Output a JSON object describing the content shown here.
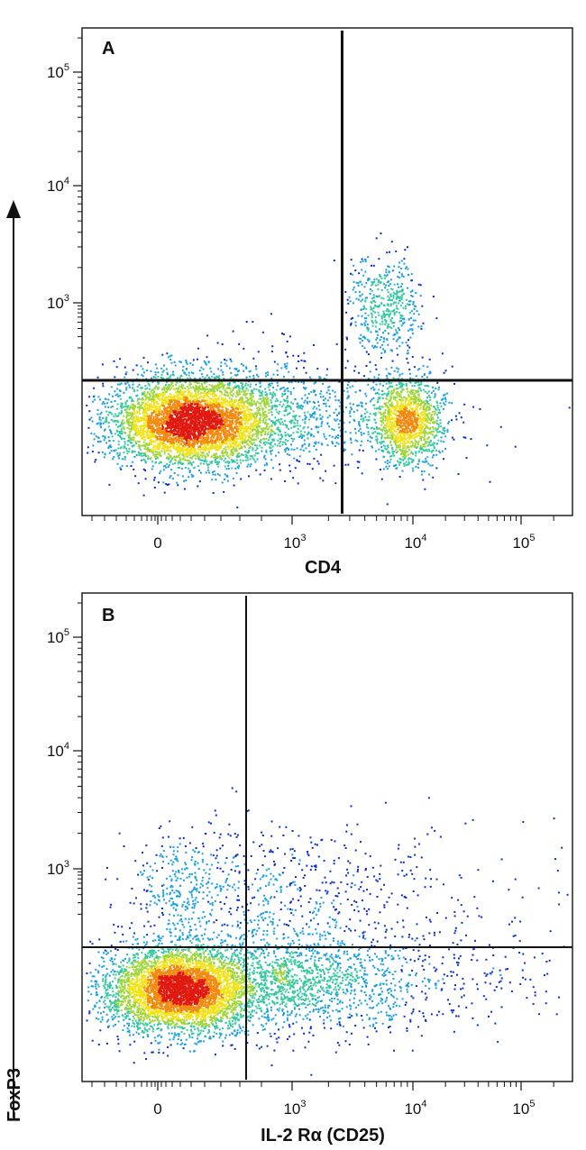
{
  "shared_y_axis": {
    "label": "FoxP3"
  },
  "chart_data": [
    {
      "type": "scatter",
      "panel_label": "A",
      "xlabel": "CD4",
      "ylabel": "FoxP3",
      "x_scale": "biexponential",
      "y_scale": "biexponential",
      "x_ticks": [
        {
          "base": "0",
          "exp": ""
        },
        {
          "base": "10",
          "exp": "3"
        },
        {
          "base": "10",
          "exp": "4"
        },
        {
          "base": "10",
          "exp": "5"
        }
      ],
      "y_ticks": [
        {
          "base": "10",
          "exp": "3"
        },
        {
          "base": "10",
          "exp": "4"
        },
        {
          "base": "10",
          "exp": "5"
        }
      ],
      "gate": {
        "x": 2600,
        "y": 280
      },
      "populations": [
        {
          "name": "CD4- FoxP3-",
          "center": [
            180,
            90
          ],
          "approx_fraction": 0.72
        },
        {
          "name": "CD4+ FoxP3-",
          "center": [
            9500,
            90
          ],
          "approx_fraction": 0.2
        },
        {
          "name": "CD4+ FoxP3+",
          "center": [
            6500,
            1000
          ],
          "approx_fraction": 0.08
        }
      ],
      "color_scale": [
        "#0b2fc8",
        "#1aa0e0",
        "#35c8a0",
        "#9fd63a",
        "#f2e21a",
        "#f28a10",
        "#e01a10"
      ]
    },
    {
      "type": "scatter",
      "panel_label": "B",
      "xlabel": "IL-2 Rα (CD25)",
      "ylabel": "FoxP3",
      "x_scale": "biexponential",
      "y_scale": "biexponential",
      "x_ticks": [
        {
          "base": "0",
          "exp": ""
        },
        {
          "base": "10",
          "exp": "3"
        },
        {
          "base": "10",
          "exp": "4"
        },
        {
          "base": "10",
          "exp": "5"
        }
      ],
      "y_ticks": [
        {
          "base": "10",
          "exp": "3"
        },
        {
          "base": "10",
          "exp": "4"
        },
        {
          "base": "10",
          "exp": "5"
        }
      ],
      "gate": {
        "x": 400,
        "y": 280
      },
      "populations": [
        {
          "name": "CD25- FoxP3-",
          "center": [
            140,
            90
          ],
          "approx_fraction": 0.7
        },
        {
          "name": "CD25+ FoxP3-",
          "center": [
            1500,
            120
          ],
          "approx_fraction": 0.16
        },
        {
          "name": "CD25+ FoxP3+",
          "center": [
            1200,
            900
          ],
          "approx_fraction": 0.08
        },
        {
          "name": "CD25- FoxP3+",
          "center": [
            180,
            750
          ],
          "approx_fraction": 0.06
        }
      ],
      "color_scale": [
        "#0b2fc8",
        "#1aa0e0",
        "#35c8a0",
        "#9fd63a",
        "#f2e21a",
        "#f28a10",
        "#e01a10"
      ]
    }
  ]
}
